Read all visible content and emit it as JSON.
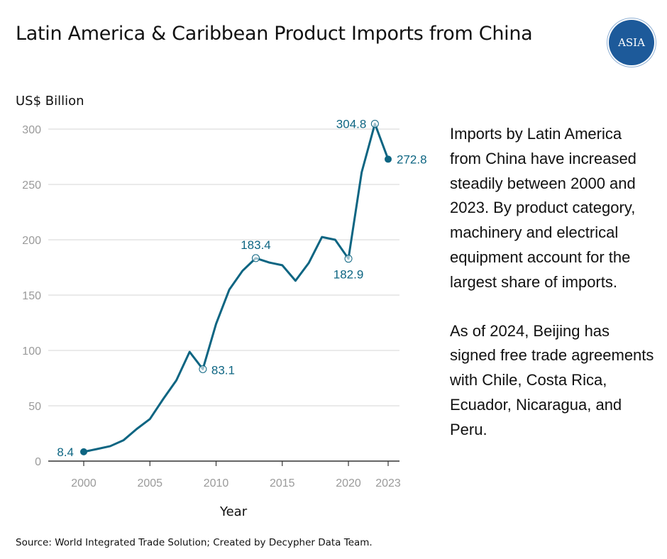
{
  "title": "Latin America & Caribbean Product Imports from China",
  "logo_text": "ASIA",
  "note": [
    "Imports by Latin America from China have increased steadily between 2000 and 2023. By product category, machinery and electrical equipment account for the largest share of imports.",
    "As of 2024, Beijing has signed free trade agreements with Chile, Costa Rica, Ecuador, Nicaragua, and Peru."
  ],
  "source": "Source: World Integrated Trade Solution; Created by Decypher Data Team.",
  "chart_data": {
    "type": "line",
    "title": "Latin America & Caribbean Product Imports from China",
    "xlabel": "Year",
    "ylabel": "US$ Billion",
    "x": [
      2000,
      2001,
      2002,
      2003,
      2004,
      2005,
      2006,
      2007,
      2008,
      2009,
      2010,
      2011,
      2012,
      2013,
      2014,
      2015,
      2016,
      2017,
      2018,
      2019,
      2020,
      2021,
      2022,
      2023
    ],
    "values": [
      8.4,
      10.9,
      13.5,
      18.8,
      29,
      38,
      56,
      73,
      98.7,
      83.1,
      124,
      155,
      172,
      183.4,
      179.5,
      177,
      163,
      179,
      202.5,
      200,
      182.9,
      261,
      304.8,
      272.8
    ],
    "xlim": [
      1997.3,
      2024
    ],
    "ylim": [
      0,
      300
    ],
    "xticks": [
      2000,
      2005,
      2010,
      2015,
      2020,
      2023
    ],
    "yticks": [
      0,
      50,
      100,
      150,
      200,
      250,
      300
    ],
    "labels": [
      {
        "x": 2000,
        "text": "8.4"
      },
      {
        "x": 2009,
        "text": "83.1"
      },
      {
        "x": 2013,
        "text": "183.4"
      },
      {
        "x": 2020,
        "text": "182.9"
      },
      {
        "x": 2022,
        "text": "304.8"
      },
      {
        "x": 2023,
        "text": "272.8"
      }
    ],
    "color": "#0d6582",
    "grid": true
  }
}
